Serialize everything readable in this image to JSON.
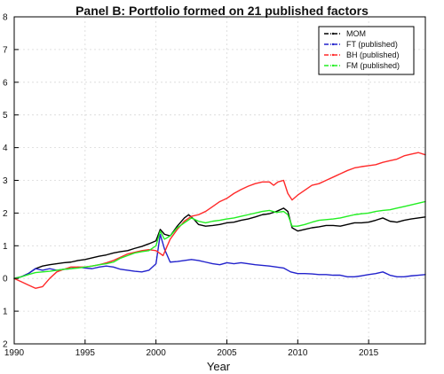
{
  "chart_data": {
    "type": "line",
    "title": "Panel B: Portfolio formed on 21 published factors",
    "xlabel": "Year",
    "ylabel": "",
    "xlim": [
      1990,
      2019
    ],
    "ylim": [
      -2,
      8
    ],
    "xticks": [
      1990,
      1995,
      2000,
      2005,
      2010,
      2015
    ],
    "yticks": [
      {
        "value": 8,
        "label": "8"
      },
      {
        "value": 7,
        "label": "7"
      },
      {
        "value": 6,
        "label": "6"
      },
      {
        "value": 5,
        "label": "5"
      },
      {
        "value": 4,
        "label": "4"
      },
      {
        "value": 3,
        "label": "3"
      },
      {
        "value": 2,
        "label": "2"
      },
      {
        "value": 1,
        "label": "1"
      },
      {
        "value": 0,
        "label": "0"
      },
      {
        "value": -1,
        "label": "1"
      },
      {
        "value": -2,
        "label": "2"
      }
    ],
    "grid": true,
    "legend_position": "top-right",
    "series": [
      {
        "name": "MOM",
        "color": "#000000",
        "style": "dot-dash",
        "points": [
          [
            1990.0,
            0.0
          ],
          [
            1990.5,
            0.05
          ],
          [
            1991.0,
            0.15
          ],
          [
            1991.5,
            0.3
          ],
          [
            1992.0,
            0.38
          ],
          [
            1992.5,
            0.42
          ],
          [
            1993.0,
            0.45
          ],
          [
            1993.5,
            0.48
          ],
          [
            1994.0,
            0.5
          ],
          [
            1994.5,
            0.55
          ],
          [
            1995.0,
            0.58
          ],
          [
            1995.5,
            0.63
          ],
          [
            1996.0,
            0.68
          ],
          [
            1996.5,
            0.72
          ],
          [
            1997.0,
            0.78
          ],
          [
            1997.5,
            0.82
          ],
          [
            1998.0,
            0.85
          ],
          [
            1998.5,
            0.92
          ],
          [
            1999.0,
            0.98
          ],
          [
            1999.5,
            1.06
          ],
          [
            2000.0,
            1.15
          ],
          [
            2000.3,
            1.5
          ],
          [
            2000.6,
            1.35
          ],
          [
            2001.0,
            1.3
          ],
          [
            2001.5,
            1.6
          ],
          [
            2002.0,
            1.85
          ],
          [
            2002.3,
            1.95
          ],
          [
            2002.7,
            1.8
          ],
          [
            2003.0,
            1.65
          ],
          [
            2003.5,
            1.6
          ],
          [
            2004.0,
            1.62
          ],
          [
            2004.5,
            1.65
          ],
          [
            2005.0,
            1.7
          ],
          [
            2005.5,
            1.72
          ],
          [
            2006.0,
            1.78
          ],
          [
            2006.5,
            1.82
          ],
          [
            2007.0,
            1.88
          ],
          [
            2007.5,
            1.95
          ],
          [
            2008.0,
            1.98
          ],
          [
            2008.5,
            2.05
          ],
          [
            2009.0,
            2.15
          ],
          [
            2009.3,
            2.05
          ],
          [
            2009.6,
            1.55
          ],
          [
            2010.0,
            1.45
          ],
          [
            2010.5,
            1.5
          ],
          [
            2011.0,
            1.55
          ],
          [
            2011.5,
            1.58
          ],
          [
            2012.0,
            1.62
          ],
          [
            2012.5,
            1.62
          ],
          [
            2013.0,
            1.6
          ],
          [
            2013.5,
            1.65
          ],
          [
            2014.0,
            1.7
          ],
          [
            2014.5,
            1.7
          ],
          [
            2015.0,
            1.72
          ],
          [
            2015.5,
            1.78
          ],
          [
            2016.0,
            1.85
          ],
          [
            2016.5,
            1.75
          ],
          [
            2017.0,
            1.72
          ],
          [
            2017.5,
            1.78
          ],
          [
            2018.0,
            1.82
          ],
          [
            2018.5,
            1.85
          ],
          [
            2019.0,
            1.88
          ]
        ]
      },
      {
        "name": "FT (published)",
        "color": "#2222cc",
        "style": "dot-dash",
        "points": [
          [
            1990.0,
            0.0
          ],
          [
            1990.5,
            0.05
          ],
          [
            1991.0,
            0.15
          ],
          [
            1991.5,
            0.3
          ],
          [
            1992.0,
            0.25
          ],
          [
            1992.5,
            0.3
          ],
          [
            1993.0,
            0.25
          ],
          [
            1993.5,
            0.28
          ],
          [
            1994.0,
            0.3
          ],
          [
            1994.5,
            0.35
          ],
          [
            1995.0,
            0.32
          ],
          [
            1995.5,
            0.3
          ],
          [
            1996.0,
            0.35
          ],
          [
            1996.5,
            0.38
          ],
          [
            1997.0,
            0.35
          ],
          [
            1997.5,
            0.28
          ],
          [
            1998.0,
            0.25
          ],
          [
            1998.5,
            0.22
          ],
          [
            1999.0,
            0.2
          ],
          [
            1999.5,
            0.25
          ],
          [
            2000.0,
            0.45
          ],
          [
            2000.3,
            1.35
          ],
          [
            2000.6,
            0.9
          ],
          [
            2001.0,
            0.5
          ],
          [
            2001.5,
            0.52
          ],
          [
            2002.0,
            0.55
          ],
          [
            2002.5,
            0.58
          ],
          [
            2003.0,
            0.55
          ],
          [
            2003.5,
            0.5
          ],
          [
            2004.0,
            0.45
          ],
          [
            2004.5,
            0.42
          ],
          [
            2005.0,
            0.48
          ],
          [
            2005.5,
            0.45
          ],
          [
            2006.0,
            0.48
          ],
          [
            2006.5,
            0.45
          ],
          [
            2007.0,
            0.42
          ],
          [
            2007.5,
            0.4
          ],
          [
            2008.0,
            0.38
          ],
          [
            2008.5,
            0.35
          ],
          [
            2009.0,
            0.32
          ],
          [
            2009.5,
            0.2
          ],
          [
            2010.0,
            0.15
          ],
          [
            2010.5,
            0.15
          ],
          [
            2011.0,
            0.14
          ],
          [
            2011.5,
            0.12
          ],
          [
            2012.0,
            0.12
          ],
          [
            2012.5,
            0.1
          ],
          [
            2013.0,
            0.1
          ],
          [
            2013.5,
            0.05
          ],
          [
            2014.0,
            0.05
          ],
          [
            2014.5,
            0.08
          ],
          [
            2015.0,
            0.12
          ],
          [
            2015.5,
            0.15
          ],
          [
            2016.0,
            0.2
          ],
          [
            2016.5,
            0.1
          ],
          [
            2017.0,
            0.05
          ],
          [
            2017.5,
            0.05
          ],
          [
            2018.0,
            0.08
          ],
          [
            2018.5,
            0.1
          ],
          [
            2019.0,
            0.12
          ]
        ]
      },
      {
        "name": "BH (published)",
        "color": "#ff2a2a",
        "style": "dot-dash",
        "points": [
          [
            1990.0,
            0.0
          ],
          [
            1990.5,
            -0.1
          ],
          [
            1991.0,
            -0.2
          ],
          [
            1991.5,
            -0.3
          ],
          [
            1992.0,
            -0.25
          ],
          [
            1992.5,
            0.0
          ],
          [
            1993.0,
            0.2
          ],
          [
            1993.5,
            0.28
          ],
          [
            1994.0,
            0.35
          ],
          [
            1994.5,
            0.35
          ],
          [
            1995.0,
            0.35
          ],
          [
            1995.5,
            0.38
          ],
          [
            1996.0,
            0.42
          ],
          [
            1996.5,
            0.48
          ],
          [
            1997.0,
            0.55
          ],
          [
            1997.5,
            0.65
          ],
          [
            1998.0,
            0.75
          ],
          [
            1998.5,
            0.8
          ],
          [
            1999.0,
            0.85
          ],
          [
            1999.5,
            0.88
          ],
          [
            2000.0,
            0.85
          ],
          [
            2000.5,
            0.7
          ],
          [
            2001.0,
            1.2
          ],
          [
            2001.5,
            1.5
          ],
          [
            2002.0,
            1.75
          ],
          [
            2002.5,
            1.9
          ],
          [
            2003.0,
            1.95
          ],
          [
            2003.5,
            2.05
          ],
          [
            2004.0,
            2.2
          ],
          [
            2004.5,
            2.35
          ],
          [
            2005.0,
            2.45
          ],
          [
            2005.5,
            2.6
          ],
          [
            2006.0,
            2.72
          ],
          [
            2006.5,
            2.82
          ],
          [
            2007.0,
            2.9
          ],
          [
            2007.5,
            2.95
          ],
          [
            2008.0,
            2.95
          ],
          [
            2008.3,
            2.85
          ],
          [
            2008.6,
            2.95
          ],
          [
            2009.0,
            3.0
          ],
          [
            2009.3,
            2.6
          ],
          [
            2009.6,
            2.4
          ],
          [
            2010.0,
            2.55
          ],
          [
            2010.5,
            2.7
          ],
          [
            2011.0,
            2.85
          ],
          [
            2011.5,
            2.9
          ],
          [
            2012.0,
            3.0
          ],
          [
            2012.5,
            3.1
          ],
          [
            2013.0,
            3.2
          ],
          [
            2013.5,
            3.3
          ],
          [
            2014.0,
            3.38
          ],
          [
            2014.5,
            3.42
          ],
          [
            2015.0,
            3.45
          ],
          [
            2015.5,
            3.48
          ],
          [
            2016.0,
            3.55
          ],
          [
            2016.5,
            3.6
          ],
          [
            2017.0,
            3.65
          ],
          [
            2017.5,
            3.75
          ],
          [
            2018.0,
            3.8
          ],
          [
            2018.5,
            3.85
          ],
          [
            2019.0,
            3.78
          ]
        ]
      },
      {
        "name": "FM (published)",
        "color": "#22ee22",
        "style": "dot-dash",
        "points": [
          [
            1990.0,
            0.0
          ],
          [
            1990.5,
            0.05
          ],
          [
            1991.0,
            0.12
          ],
          [
            1991.5,
            0.18
          ],
          [
            1992.0,
            0.2
          ],
          [
            1992.5,
            0.22
          ],
          [
            1993.0,
            0.25
          ],
          [
            1993.5,
            0.28
          ],
          [
            1994.0,
            0.3
          ],
          [
            1994.5,
            0.32
          ],
          [
            1995.0,
            0.35
          ],
          [
            1995.5,
            0.38
          ],
          [
            1996.0,
            0.42
          ],
          [
            1996.5,
            0.45
          ],
          [
            1997.0,
            0.5
          ],
          [
            1997.5,
            0.62
          ],
          [
            1998.0,
            0.7
          ],
          [
            1998.5,
            0.78
          ],
          [
            1999.0,
            0.82
          ],
          [
            1999.5,
            0.85
          ],
          [
            2000.0,
            1.0
          ],
          [
            2000.3,
            1.45
          ],
          [
            2000.6,
            1.2
          ],
          [
            2001.0,
            1.3
          ],
          [
            2001.5,
            1.55
          ],
          [
            2002.0,
            1.7
          ],
          [
            2002.5,
            1.85
          ],
          [
            2003.0,
            1.75
          ],
          [
            2003.5,
            1.7
          ],
          [
            2004.0,
            1.75
          ],
          [
            2004.5,
            1.78
          ],
          [
            2005.0,
            1.82
          ],
          [
            2005.5,
            1.85
          ],
          [
            2006.0,
            1.9
          ],
          [
            2006.5,
            1.95
          ],
          [
            2007.0,
            2.0
          ],
          [
            2007.5,
            2.05
          ],
          [
            2008.0,
            2.08
          ],
          [
            2008.5,
            2.02
          ],
          [
            2009.0,
            2.05
          ],
          [
            2009.3,
            1.95
          ],
          [
            2009.6,
            1.6
          ],
          [
            2010.0,
            1.6
          ],
          [
            2010.5,
            1.65
          ],
          [
            2011.0,
            1.72
          ],
          [
            2011.5,
            1.78
          ],
          [
            2012.0,
            1.8
          ],
          [
            2012.5,
            1.82
          ],
          [
            2013.0,
            1.85
          ],
          [
            2013.5,
            1.9
          ],
          [
            2014.0,
            1.95
          ],
          [
            2014.5,
            1.98
          ],
          [
            2015.0,
            2.0
          ],
          [
            2015.5,
            2.05
          ],
          [
            2016.0,
            2.08
          ],
          [
            2016.5,
            2.1
          ],
          [
            2017.0,
            2.15
          ],
          [
            2017.5,
            2.2
          ],
          [
            2018.0,
            2.25
          ],
          [
            2018.5,
            2.3
          ],
          [
            2019.0,
            2.35
          ]
        ]
      }
    ]
  }
}
